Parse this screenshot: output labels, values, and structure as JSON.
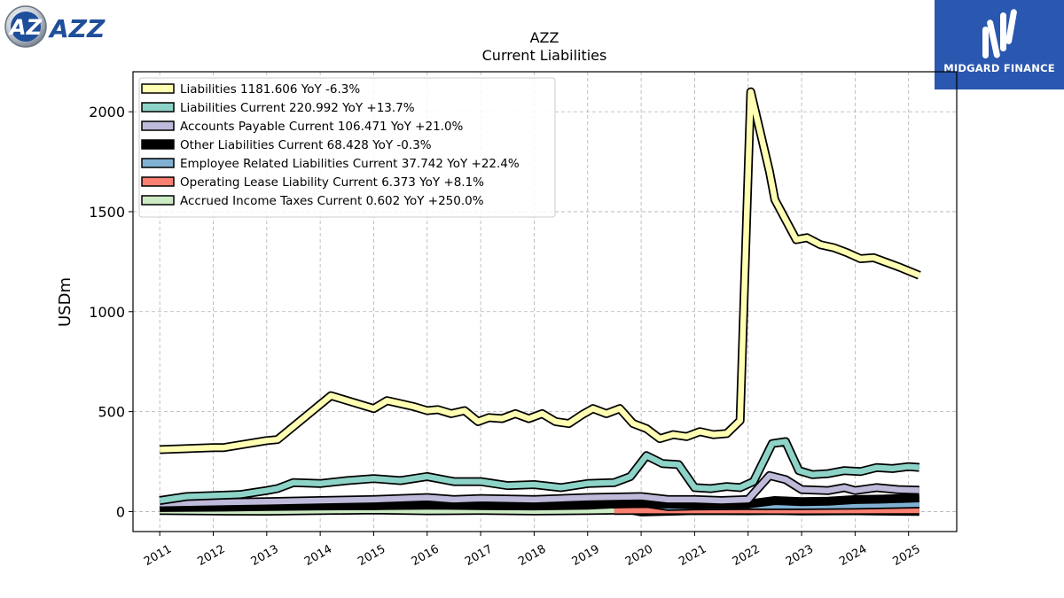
{
  "logo": {
    "text": "AZZ",
    "colors": {
      "primary": "#1f4e9a",
      "silver": "#c8ced6"
    }
  },
  "brand": {
    "name": "MIDGARD FINANCE",
    "color": "#2a57b0"
  },
  "chart_data": {
    "type": "line",
    "title": "AZZ",
    "subtitle": "Current  Liabilities",
    "xlabel": "",
    "ylabel": "USDm",
    "xlim": [
      2010.5,
      2025.9
    ],
    "ylim": [
      -100,
      2200
    ],
    "x_ticks": [
      "2011",
      "2012",
      "2013",
      "2014",
      "2015",
      "2016",
      "2017",
      "2018",
      "2019",
      "2020",
      "2021",
      "2022",
      "2023",
      "2024",
      "2025"
    ],
    "y_ticks": [
      0,
      500,
      1000,
      1500,
      2000
    ],
    "grid": true,
    "legend_position": "top-left",
    "series": [
      {
        "name": "Liabilities",
        "label": "Liabilities  1181.606 YoY -6.3%",
        "color": "#ffffb3",
        "x": [
          2011.0,
          2012.0,
          2012.2,
          2013.0,
          2013.2,
          2014.2,
          2015.0,
          2015.25,
          2015.5,
          2015.75,
          2016.0,
          2016.2,
          2016.45,
          2016.7,
          2016.95,
          2017.15,
          2017.4,
          2017.65,
          2017.9,
          2018.15,
          2018.4,
          2018.65,
          2018.9,
          2019.1,
          2019.35,
          2019.6,
          2019.85,
          2020.1,
          2020.35,
          2020.6,
          2020.85,
          2021.1,
          2021.35,
          2021.6,
          2021.85,
          2022.05,
          2022.4,
          2022.5,
          2022.9,
          2023.1,
          2023.35,
          2023.6,
          2023.85,
          2024.1,
          2024.35,
          2024.6,
          2024.85,
          2025.2
        ],
        "values": [
          310,
          320,
          320,
          355,
          360,
          580,
          515,
          555,
          540,
          525,
          505,
          510,
          490,
          505,
          450,
          470,
          465,
          490,
          465,
          490,
          450,
          440,
          485,
          515,
          490,
          515,
          440,
          415,
          365,
          385,
          375,
          400,
          385,
          390,
          455,
          2100,
          1700,
          1560,
          1360,
          1370,
          1335,
          1320,
          1295,
          1265,
          1270,
          1245,
          1220,
          1181.606
        ]
      },
      {
        "name": "Liabilities Current",
        "label": "Liabilities Current  220.992 YoY +13.7%",
        "color": "#8dd3c7",
        "x": [
          2011.0,
          2011.5,
          2012.0,
          2012.5,
          2013.0,
          2013.2,
          2013.5,
          2014.0,
          2014.5,
          2015.0,
          2015.5,
          2016.0,
          2016.5,
          2017.0,
          2017.5,
          2018.0,
          2018.5,
          2019.0,
          2019.5,
          2019.8,
          2020.1,
          2020.4,
          2020.7,
          2021.0,
          2021.3,
          2021.6,
          2021.85,
          2022.1,
          2022.45,
          2022.7,
          2022.95,
          2023.2,
          2023.5,
          2023.8,
          2024.1,
          2024.4,
          2024.7,
          2025.0,
          2025.2
        ],
        "values": [
          55,
          75,
          80,
          85,
          105,
          115,
          145,
          140,
          155,
          165,
          155,
          175,
          150,
          150,
          130,
          135,
          120,
          140,
          145,
          175,
          280,
          240,
          235,
          120,
          115,
          125,
          120,
          150,
          340,
          350,
          205,
          185,
          190,
          205,
          200,
          220,
          215,
          225,
          220.992
        ]
      },
      {
        "name": "Accounts Payable Current",
        "label": "Accounts Payable Current  106.471 YoY +21.0%",
        "color": "#bebada",
        "x": [
          2011.0,
          2012.0,
          2013.0,
          2014.0,
          2015.0,
          2016.0,
          2016.5,
          2017.0,
          2018.0,
          2019.0,
          2020.0,
          2020.5,
          2021.0,
          2021.5,
          2022.0,
          2022.4,
          2022.7,
          2023.0,
          2023.5,
          2023.8,
          2024.0,
          2024.4,
          2024.8,
          2025.2
        ],
        "values": [
          40,
          45,
          50,
          55,
          60,
          70,
          60,
          65,
          60,
          70,
          75,
          60,
          60,
          55,
          60,
          180,
          160,
          110,
          105,
          120,
          105,
          120,
          110,
          106.471
        ]
      },
      {
        "name": "Other Liabilities Current",
        "label": "Other Liabilities Current  68.428 YoY -0.3%",
        "color": "#000000",
        "x": [
          2011.0,
          2012.0,
          2013.0,
          2014.0,
          2015.0,
          2016.0,
          2017.0,
          2018.0,
          2019.0,
          2020.0,
          2021.0,
          2022.0,
          2022.5,
          2023.0,
          2023.5,
          2024.0,
          2024.5,
          2025.2
        ],
        "values": [
          25,
          28,
          30,
          32,
          30,
          35,
          33,
          32,
          35,
          40,
          35,
          38,
          55,
          50,
          52,
          60,
          62,
          68.428
        ]
      },
      {
        "name": "Employee Related Liabilities Current",
        "label": "Employee Related Liabilities Current  37.742 YoY +22.4%",
        "color": "#80b1d3",
        "x": [
          2011.0,
          2012.0,
          2013.0,
          2014.0,
          2015.0,
          2016.0,
          2017.0,
          2018.0,
          2019.0,
          2020.0,
          2020.5,
          2021.0,
          2022.0,
          2023.0,
          2024.0,
          2025.2
        ],
        "values": [
          20,
          22,
          25,
          28,
          30,
          32,
          30,
          28,
          32,
          45,
          25,
          28,
          30,
          30,
          32,
          37.742
        ]
      },
      {
        "name": "Operating Lease Liability Current",
        "label": "Operating Lease Liability Current  6.373 YoY +8.1%",
        "color": "#fb8072",
        "x": [
          2019.5,
          2020.0,
          2021.0,
          2022.0,
          2023.0,
          2024.0,
          2025.2
        ],
        "values": [
          5,
          6,
          6,
          6,
          5,
          6,
          6.373
        ]
      },
      {
        "name": "Accrued Income Taxes Current",
        "label": "Accrued Income Taxes Current  0.602 YoY +250.0%",
        "color": "#ccebc5",
        "x": [
          2011.0,
          2012.0,
          2013.0,
          2014.0,
          2015.0,
          2016.0,
          2017.0,
          2018.0,
          2019.0,
          2019.8,
          2020.0,
          2021.0,
          2022.0,
          2022.5,
          2023.0,
          2024.0,
          2025.2
        ],
        "values": [
          5,
          3,
          2,
          5,
          8,
          4,
          6,
          3,
          5,
          8,
          -2,
          5,
          4,
          6,
          3,
          4,
          0.602
        ]
      }
    ]
  }
}
